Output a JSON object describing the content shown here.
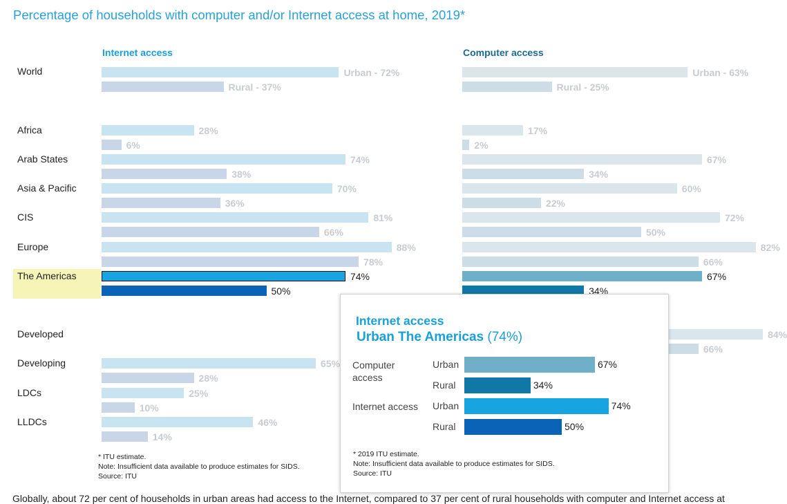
{
  "title": "Percentage of households with computer and/or Internet access at home, 2019*",
  "bottom_text": "Globally, about 72 per cent of households in urban areas had access to the Internet, compared to 37 per cent of rural households with computer and Internet access at",
  "colors": {
    "title": "#2aa0d8",
    "internet_urban_faded": "#c7e4f0",
    "internet_rural_faded": "#c8d6e7",
    "computer_urban_faded": "#dbe5ec",
    "computer_rural_faded": "#cddde7",
    "internet_urban": "#18a4e0",
    "internet_rural": "#0b63b8",
    "computer_urban": "#6fb0c8",
    "computer_rural": "#0f78a6",
    "highlight": "#f6f4b6"
  },
  "chart_data": {
    "type": "bar",
    "orientation": "horizontal",
    "title": "Percentage of households with computer and/or Internet access at home, 2019*",
    "panels": [
      "Internet access",
      "Computer access"
    ],
    "xlim": [
      0,
      100
    ],
    "highlighted_category": "The Americas",
    "world_labels": {
      "urban": "Urban -",
      "rural": "Rural -"
    },
    "categories": [
      "World",
      "Africa",
      "Arab States",
      "Asia & Pacific",
      "CIS",
      "Europe",
      "The Americas",
      "Developed",
      "Developing",
      "LDCs",
      "LLDCs"
    ],
    "series": [
      {
        "name": "Internet access – Urban",
        "values": [
          72,
          28,
          74,
          70,
          81,
          88,
          74,
          null,
          65,
          25,
          46
        ]
      },
      {
        "name": "Internet access – Rural",
        "values": [
          37,
          6,
          38,
          36,
          66,
          78,
          50,
          null,
          28,
          10,
          14
        ]
      },
      {
        "name": "Computer access – Urban",
        "values": [
          63,
          17,
          67,
          60,
          72,
          82,
          67,
          84,
          null,
          null,
          null
        ]
      },
      {
        "name": "Computer access – Rural",
        "values": [
          25,
          2,
          34,
          22,
          50,
          66,
          34,
          66,
          null,
          null,
          null
        ]
      }
    ]
  },
  "footnote": [
    "* ITU estimate.",
    "Note: Insufficient data available to produce estimates for SIDS.",
    "Source: ITU"
  ],
  "tooltip": {
    "heading": "Internet access",
    "subheading_bold": "Urban The Americas",
    "subheading_value": "(74%)",
    "groups": [
      "Computer access",
      "Internet access"
    ],
    "rows": [
      {
        "label": "Urban",
        "value": 67,
        "text": "67%"
      },
      {
        "label": "Rural",
        "value": 34,
        "text": "34%"
      },
      {
        "label": "Urban",
        "value": 74,
        "text": "74%"
      },
      {
        "label": "Rural",
        "value": 50,
        "text": "50%"
      }
    ],
    "footnote": [
      "* 2019 ITU estimate.",
      "Note: Insufficient data available to produce estimates for SIDS.",
      "Source: ITU"
    ]
  }
}
